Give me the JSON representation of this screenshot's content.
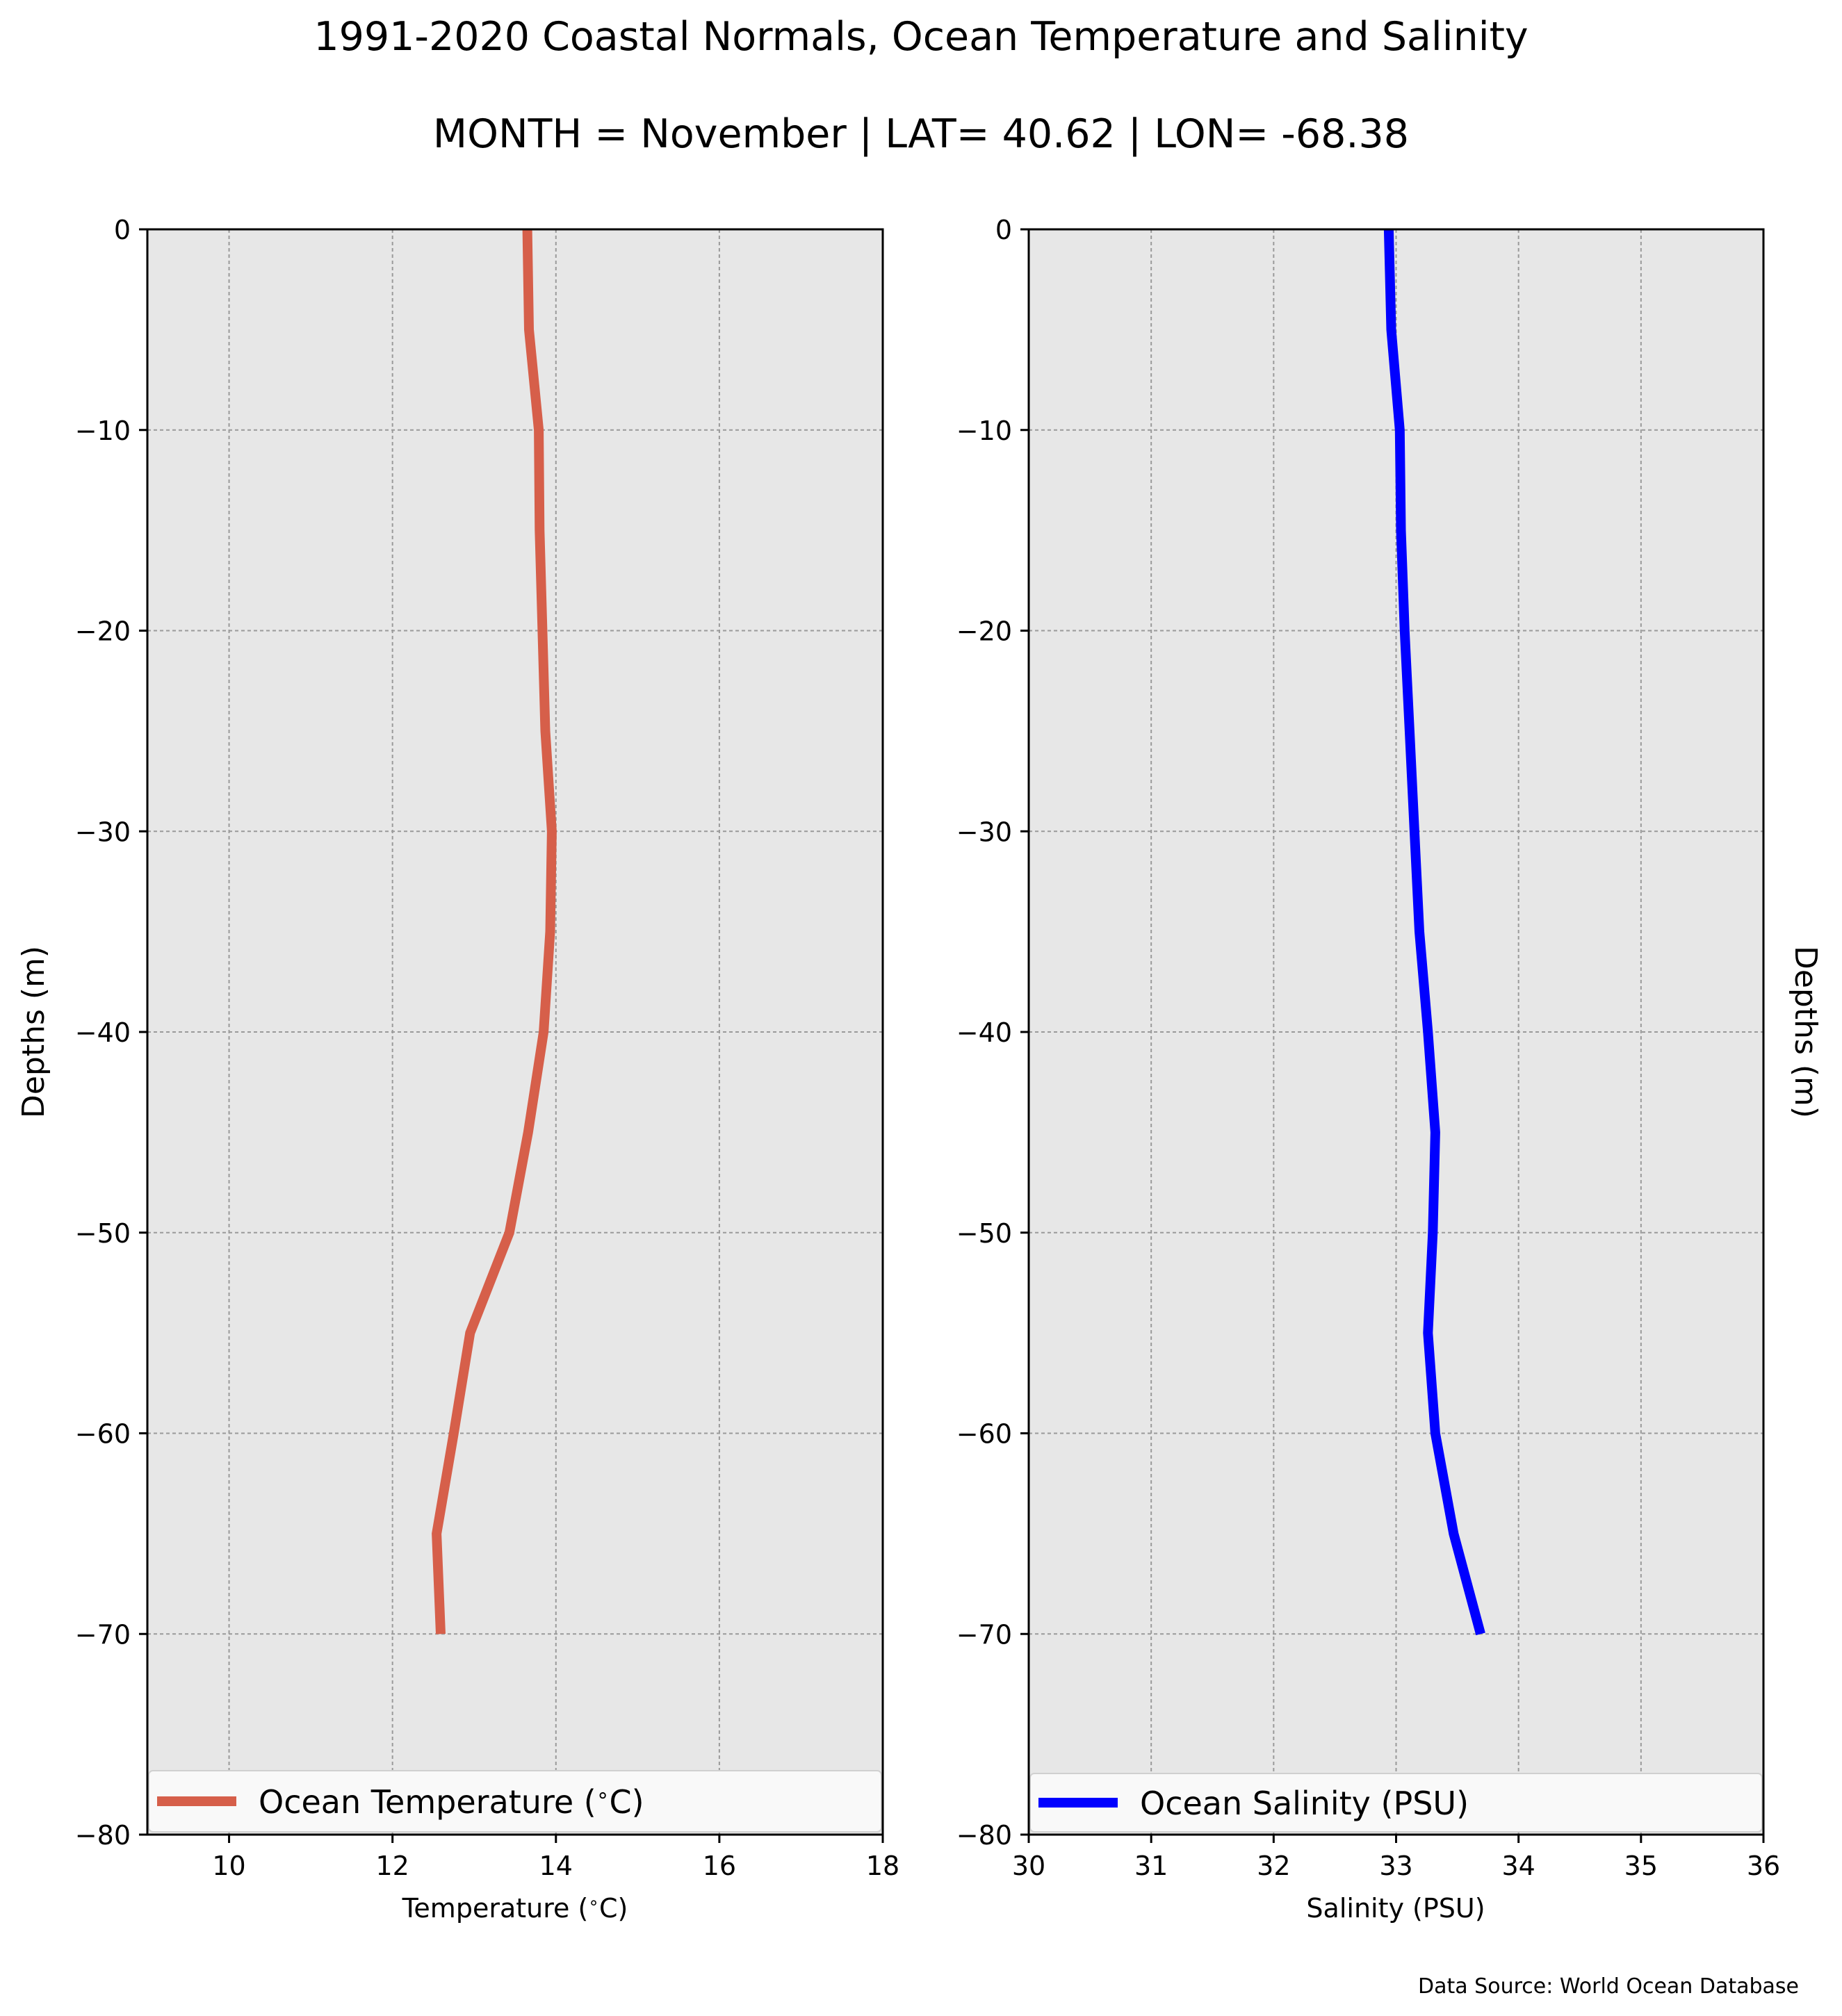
{
  "figure": {
    "title": "1991-2020 Coastal Normals, Ocean Temperature and Salinity",
    "subtitle": "MONTH = November | LAT= 40.62 | LON= -68.38",
    "source": "Data Source: World Ocean Database"
  },
  "chart_data": [
    {
      "type": "line",
      "orientation": "vertical-profile",
      "xlabel": "Temperature ($^\\circ$C)",
      "ylabel": "Depths (m)",
      "xlim": [
        9,
        18
      ],
      "ylim": [
        -80,
        0
      ],
      "xticks": [
        10,
        12,
        14,
        16,
        18
      ],
      "yticks": [
        0,
        -10,
        -20,
        -30,
        -40,
        -50,
        -60,
        -70,
        -80
      ],
      "grid": true,
      "legend_position": "bottom",
      "series": [
        {
          "name": "Ocean Temperature ($^\\circ$C)",
          "color": "#d65f4a",
          "x": [
            13.65,
            13.67,
            13.79,
            13.8,
            13.87,
            13.95,
            13.93,
            13.85,
            13.66,
            13.43,
            12.95,
            12.75,
            12.54,
            12.59
          ],
          "y": [
            0,
            -5,
            -10,
            -15,
            -25,
            -30,
            -35,
            -40,
            -45,
            -50,
            -55,
            -60,
            -65,
            -70
          ]
        }
      ]
    },
    {
      "type": "line",
      "orientation": "vertical-profile",
      "xlabel": "Salinity (PSU)",
      "ylabel": "Depths (m)",
      "xlim": [
        30,
        36
      ],
      "ylim": [
        -80,
        0
      ],
      "xticks": [
        30,
        31,
        32,
        33,
        34,
        35,
        36
      ],
      "yticks": [
        0,
        -10,
        -20,
        -30,
        -40,
        -50,
        -60,
        -70,
        -80
      ],
      "grid": true,
      "legend_position": "bottom",
      "series": [
        {
          "name": "Ocean Salinity (PSU)",
          "color": "#0000ff",
          "x": [
            32.94,
            32.96,
            33.03,
            33.04,
            33.07,
            33.11,
            33.15,
            33.19,
            33.26,
            33.32,
            33.3,
            33.26,
            33.32,
            33.47,
            33.69
          ],
          "y": [
            0,
            -5,
            -10,
            -15,
            -20,
            -25,
            -30,
            -35,
            -40,
            -45,
            -50,
            -55,
            -60,
            -65,
            -70
          ]
        }
      ]
    }
  ]
}
